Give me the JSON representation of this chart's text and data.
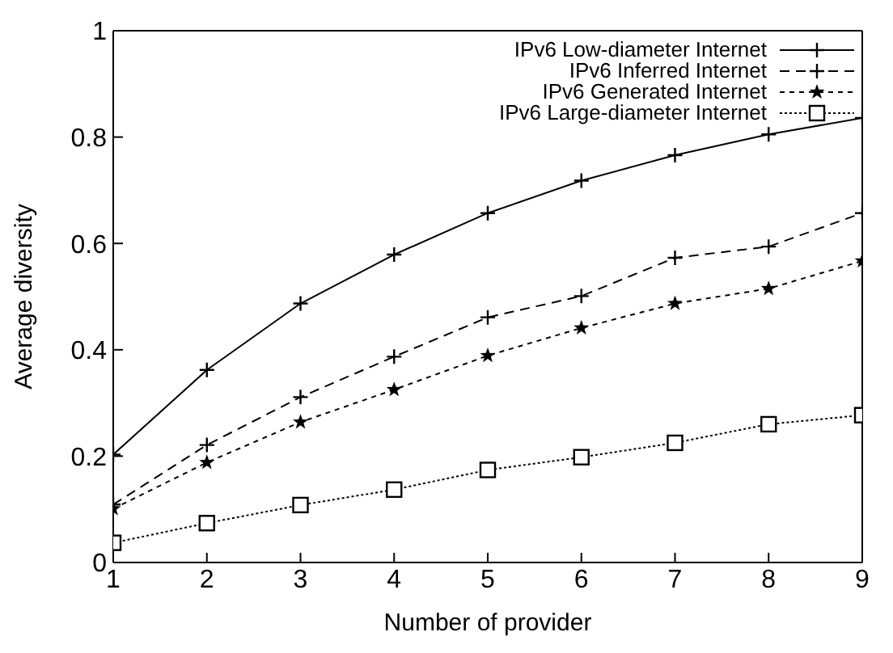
{
  "chart_data": {
    "type": "line",
    "xlabel": "Number of provider",
    "ylabel": "Average diversity",
    "x": [
      1,
      2,
      3,
      4,
      5,
      6,
      7,
      8,
      9
    ],
    "series": [
      {
        "name": "IPv6 Low-diameter Internet",
        "color": "#000000",
        "marker": "cross",
        "line_style": "solid",
        "values": [
          0.203,
          0.362,
          0.487,
          0.579,
          0.657,
          0.718,
          0.766,
          0.805,
          0.836
        ]
      },
      {
        "name": "IPv6 Inferred Internet",
        "color": "#000000",
        "marker": "cross",
        "line_style": "dashed",
        "values": [
          0.109,
          0.221,
          0.311,
          0.387,
          0.461,
          0.501,
          0.573,
          0.594,
          0.657
        ]
      },
      {
        "name": "IPv6 Generated Internet",
        "color": "#000000",
        "marker": "star",
        "line_style": "dotted",
        "values": [
          0.101,
          0.188,
          0.264,
          0.325,
          0.389,
          0.441,
          0.487,
          0.515,
          0.567
        ]
      },
      {
        "name": "IPv6 Large-diameter Internet",
        "color": "#000000",
        "marker": "square",
        "line_style": "densely-dotted",
        "values": [
          0.037,
          0.074,
          0.108,
          0.137,
          0.174,
          0.198,
          0.225,
          0.26,
          0.277
        ]
      }
    ],
    "xlim": [
      1,
      9
    ],
    "xticks": [
      1,
      2,
      3,
      4,
      5,
      6,
      7,
      8,
      9
    ],
    "ylim": [
      0,
      1
    ],
    "yticks": [
      0,
      0.2,
      0.4,
      0.6,
      0.8,
      1
    ],
    "grid": false,
    "legend": "top right"
  }
}
